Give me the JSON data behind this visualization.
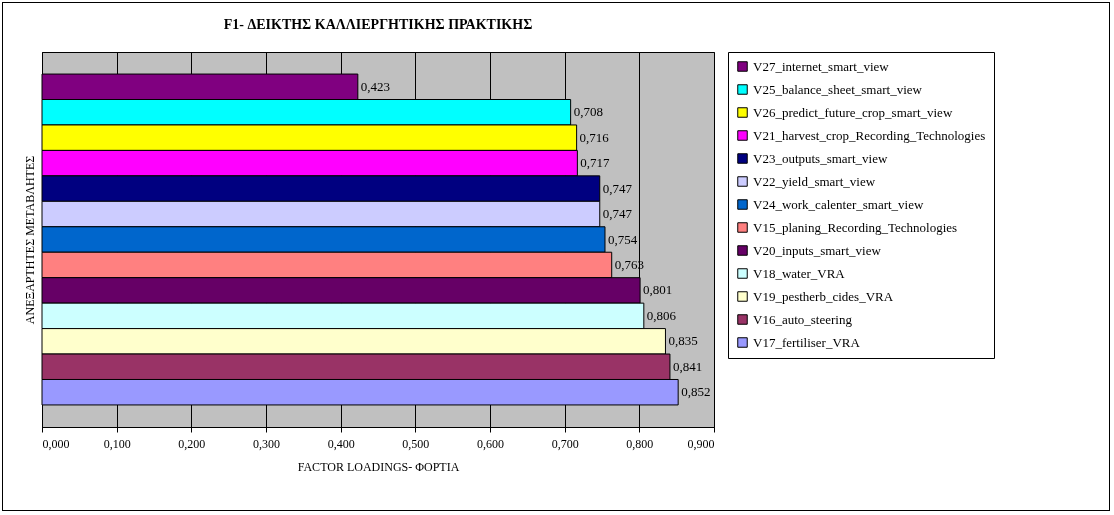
{
  "chart_data": {
    "type": "bar",
    "orientation": "horizontal",
    "title": "F1- ΔΕΙΚΤΗΣ ΚΑΛΛΙΕΡΓΗΤΙΚΗΣ ΠΡΑΚΤΙΚΗΣ",
    "xlabel": "FACTOR LOADINGS- ΦΟΡΤΙΑ",
    "ylabel": "ΑΝΕΞΑΡΤΗΤΕΣ ΜΕΤΑΒΛΗΤΕΣ",
    "categories": [
      null
    ],
    "series": [
      {
        "name": "V27_internet_smart_view",
        "color": "#800080",
        "values": [
          0.423
        ],
        "value_labels": [
          "0,423"
        ]
      },
      {
        "name": "V25_balance_sheet_smart_view",
        "color": "#00ffff",
        "values": [
          0.708
        ],
        "value_labels": [
          "0,708"
        ]
      },
      {
        "name": "V26_predict_future_crop_smart_view",
        "color": "#ffff00",
        "values": [
          0.716
        ],
        "value_labels": [
          "0,716"
        ]
      },
      {
        "name": "V21_harvest_crop_Recording_Technologies",
        "color": "#ff00ff",
        "values": [
          0.717
        ],
        "value_labels": [
          "0,717"
        ]
      },
      {
        "name": "V23_outputs_smart_view",
        "color": "#000080",
        "values": [
          0.747
        ],
        "value_labels": [
          "0,747"
        ]
      },
      {
        "name": "V22_yield_smart_view",
        "color": "#ccccff",
        "values": [
          0.747
        ],
        "value_labels": [
          "0,747"
        ]
      },
      {
        "name": "V24_work_calenter_smart_view",
        "color": "#0066cc",
        "values": [
          0.754
        ],
        "value_labels": [
          "0,754"
        ]
      },
      {
        "name": "V15_planing_Recording_Technologies",
        "color": "#ff8080",
        "values": [
          0.763
        ],
        "value_labels": [
          "0,763"
        ]
      },
      {
        "name": "V20_inputs_smart_view",
        "color": "#660066",
        "values": [
          0.801
        ],
        "value_labels": [
          "0,801"
        ]
      },
      {
        "name": "V18_water_VRA",
        "color": "#ccffff",
        "values": [
          0.806
        ],
        "value_labels": [
          "0,806"
        ]
      },
      {
        "name": "V19_pestherb_cides_VRA",
        "color": "#ffffcc",
        "values": [
          0.835
        ],
        "value_labels": [
          "0,835"
        ]
      },
      {
        "name": "V16_auto_steering",
        "color": "#993366",
        "values": [
          0.841
        ],
        "value_labels": [
          "0,841"
        ]
      },
      {
        "name": "V17_fertiliser_VRA",
        "color": "#9999ff",
        "values": [
          0.852
        ],
        "value_labels": [
          "0,852"
        ]
      }
    ],
    "xlim": [
      0,
      0.9
    ],
    "xticks": [
      {
        "value": 0,
        "label": "0,000"
      },
      {
        "value": 0.1,
        "label": "0,100"
      },
      {
        "value": 0.2,
        "label": "0,200"
      },
      {
        "value": 0.3,
        "label": "0,300"
      },
      {
        "value": 0.4,
        "label": "0,400"
      },
      {
        "value": 0.5,
        "label": "0,500"
      },
      {
        "value": 0.6,
        "label": "0,600"
      },
      {
        "value": 0.7,
        "label": "0,700"
      },
      {
        "value": 0.8,
        "label": "0,800"
      },
      {
        "value": 0.9,
        "label": "0,900"
      }
    ],
    "grid": "x",
    "legend": "right",
    "tick_labels": "x"
  }
}
